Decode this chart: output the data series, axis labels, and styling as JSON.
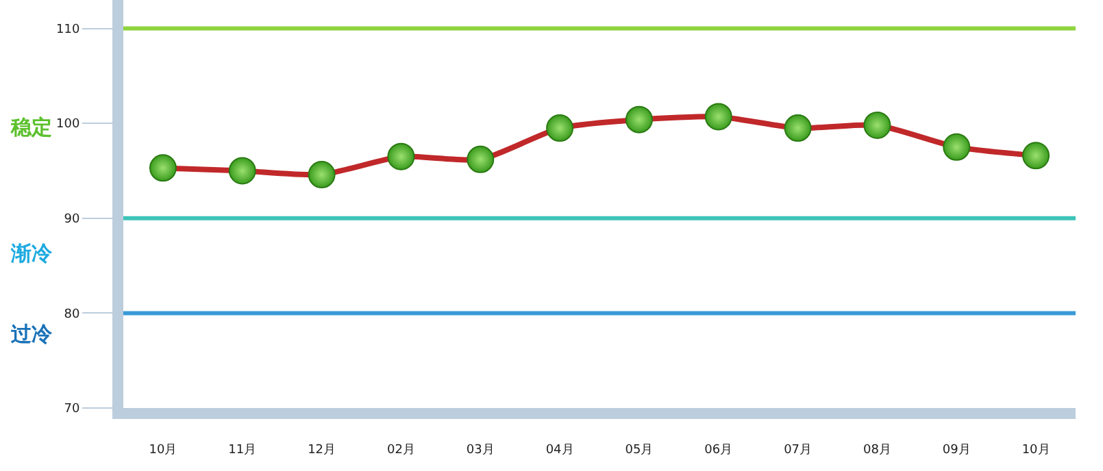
{
  "chart_data": {
    "type": "line",
    "categories": [
      "10月",
      "11月",
      "12月",
      "02月",
      "03月",
      "04月",
      "05月",
      "06月",
      "07月",
      "08月",
      "09月",
      "10月"
    ],
    "series": [
      {
        "color": "#c0282a",
        "values": [
          95.3,
          95.0,
          94.6,
          96.5,
          96.2,
          99.5,
          100.4,
          100.7,
          99.5,
          99.8,
          97.5,
          96.6
        ]
      }
    ],
    "marker": "circle",
    "line_style": "solid",
    "ylim": [
      70,
      113
    ],
    "yticks": [
      70,
      80,
      90,
      100,
      110
    ],
    "ref_lines": [
      {
        "axis": "y",
        "value": 110,
        "color": "#8ed43c"
      },
      {
        "axis": "y",
        "value": 90,
        "color": "#3cc4b8"
      },
      {
        "axis": "y",
        "value": 80,
        "color": "#3a9ad8"
      }
    ],
    "annotations": [
      "稳定",
      "渐冷",
      "过冷"
    ],
    "grid": false
  }
}
